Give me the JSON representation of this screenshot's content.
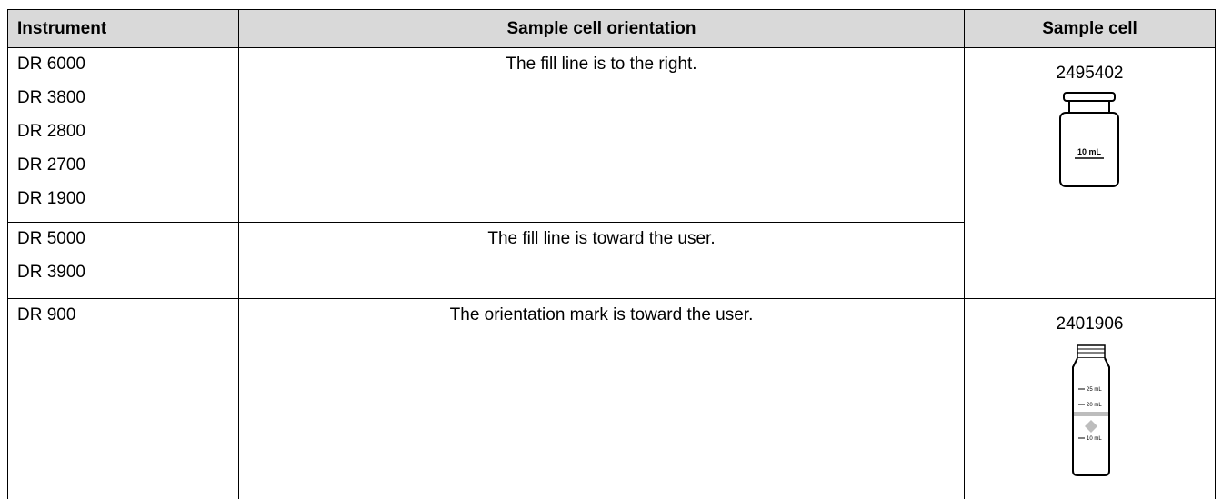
{
  "table": {
    "header": [
      "Instrument",
      "Sample cell orientation",
      "Sample cell"
    ],
    "rows": [
      {
        "instruments": [
          "DR 6000",
          "DR 3800",
          "DR 2800",
          "DR 2700",
          "DR 1900"
        ],
        "orientation": "The fill line is to the right."
      },
      {
        "instruments": [
          "DR 5000",
          "DR 3900"
        ],
        "orientation": "The fill line is toward the user."
      },
      {
        "instruments": [
          "DR 900"
        ],
        "orientation": "The orientation mark is toward the user."
      }
    ],
    "sample_cells": [
      {
        "part": "2495402",
        "marks": [
          "10 mL"
        ]
      },
      {
        "part": "2401906",
        "marks": [
          "25 mL",
          "20 mL",
          "10 mL"
        ]
      }
    ]
  }
}
